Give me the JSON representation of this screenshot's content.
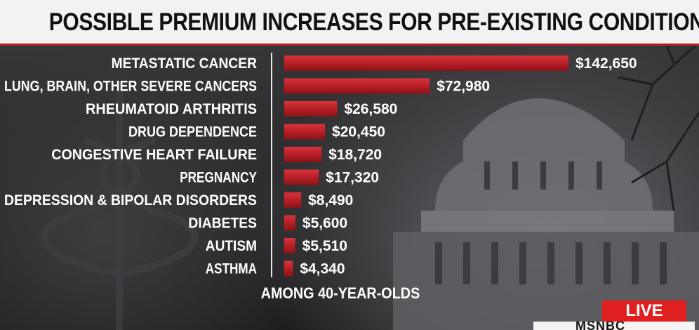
{
  "header": {
    "title": "POSSIBLE PREMIUM INCREASES FOR PRE-EXISTING CONDITIONS"
  },
  "chart_data": {
    "type": "bar",
    "orientation": "horizontal",
    "title": "POSSIBLE PREMIUM INCREASES FOR PRE-EXISTING CONDITIONS",
    "categories": [
      "METASTATIC CANCER",
      "LUNG, BRAIN, OTHER SEVERE CANCERS",
      "RHEUMATOID ARTHRITIS",
      "DRUG DEPENDENCE",
      "CONGESTIVE HEART FAILURE",
      "PREGNANCY",
      "DEPRESSION & BIPOLAR DISORDERS",
      "DIABETES",
      "AUTISM",
      "ASTHMA"
    ],
    "values": [
      142650,
      72980,
      26580,
      20450,
      18720,
      17320,
      8490,
      5600,
      5510,
      4340
    ],
    "value_labels": [
      "$142,650",
      "$72,980",
      "$26,580",
      "$20,450",
      "$18,720",
      "$17,320",
      "$8,490",
      "$5,600",
      "$5,510",
      "$4,340"
    ],
    "xlim": [
      0,
      142650
    ],
    "grid": false,
    "legend": "none",
    "bar_color": "#b31e24",
    "footnote": "AMONG 40-YEAR-OLDS"
  },
  "badges": {
    "live": "LIVE",
    "network": "MSNBC"
  },
  "colors": {
    "accent": "#b31e24",
    "live": "#e02020"
  }
}
